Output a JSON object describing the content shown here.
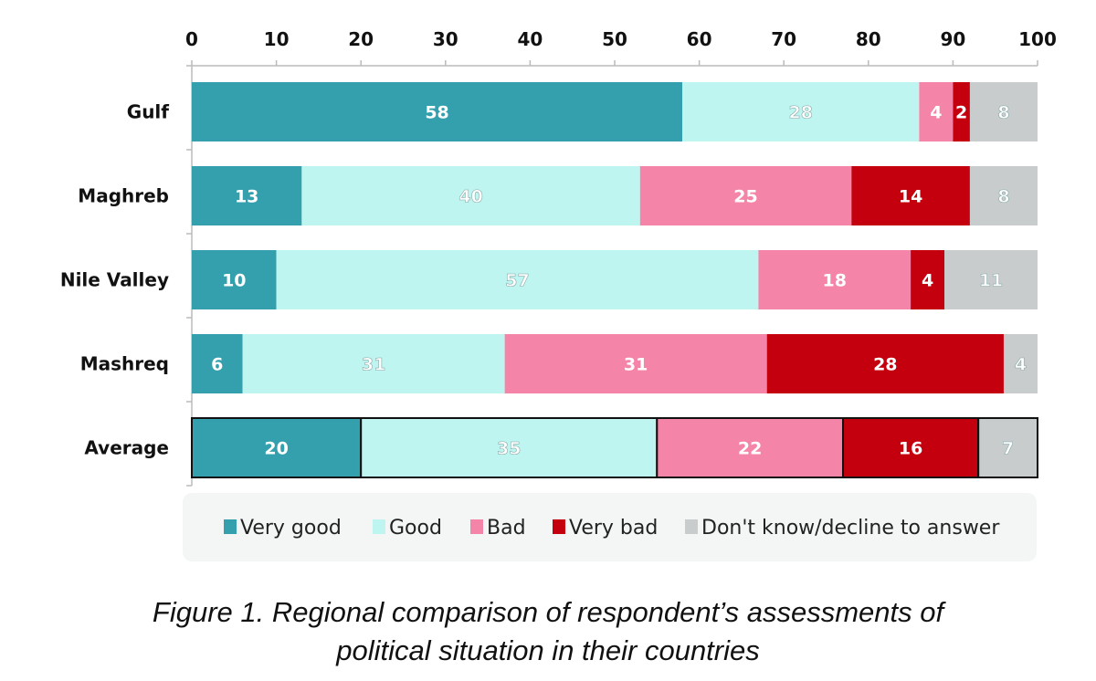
{
  "chart_data": {
    "type": "bar",
    "orientation": "horizontal",
    "stacked": true,
    "categories": [
      "Gulf",
      "Maghreb",
      "Nile Valley",
      "Mashreq",
      "Average"
    ],
    "series": [
      {
        "name": "Very good",
        "color": "#35a0ad",
        "values": [
          58,
          13,
          10,
          6,
          20
        ]
      },
      {
        "name": "Good",
        "color": "#bff5f0",
        "values": [
          28,
          40,
          57,
          31,
          35
        ]
      },
      {
        "name": "Bad",
        "color": "#f585a8",
        "values": [
          4,
          25,
          18,
          31,
          22
        ]
      },
      {
        "name": "Very bad",
        "color": "#c4000e",
        "values": [
          2,
          14,
          4,
          28,
          16
        ]
      },
      {
        "name": "Don't know/decline to answer",
        "color": "#c8cccc",
        "values": [
          8,
          8,
          11,
          4,
          7
        ]
      }
    ],
    "xlim": [
      0,
      100
    ],
    "xticks": [
      0,
      10,
      20,
      30,
      40,
      50,
      60,
      70,
      80,
      90,
      100
    ],
    "axis_position": "top",
    "grid": false,
    "legend_placement": "bottom",
    "data_labels": true,
    "highlighted_category": "Average"
  },
  "caption": {
    "line1": "Figure 1. Regional comparison of respondent’s assessments of",
    "line2": "political situation in their countries"
  }
}
